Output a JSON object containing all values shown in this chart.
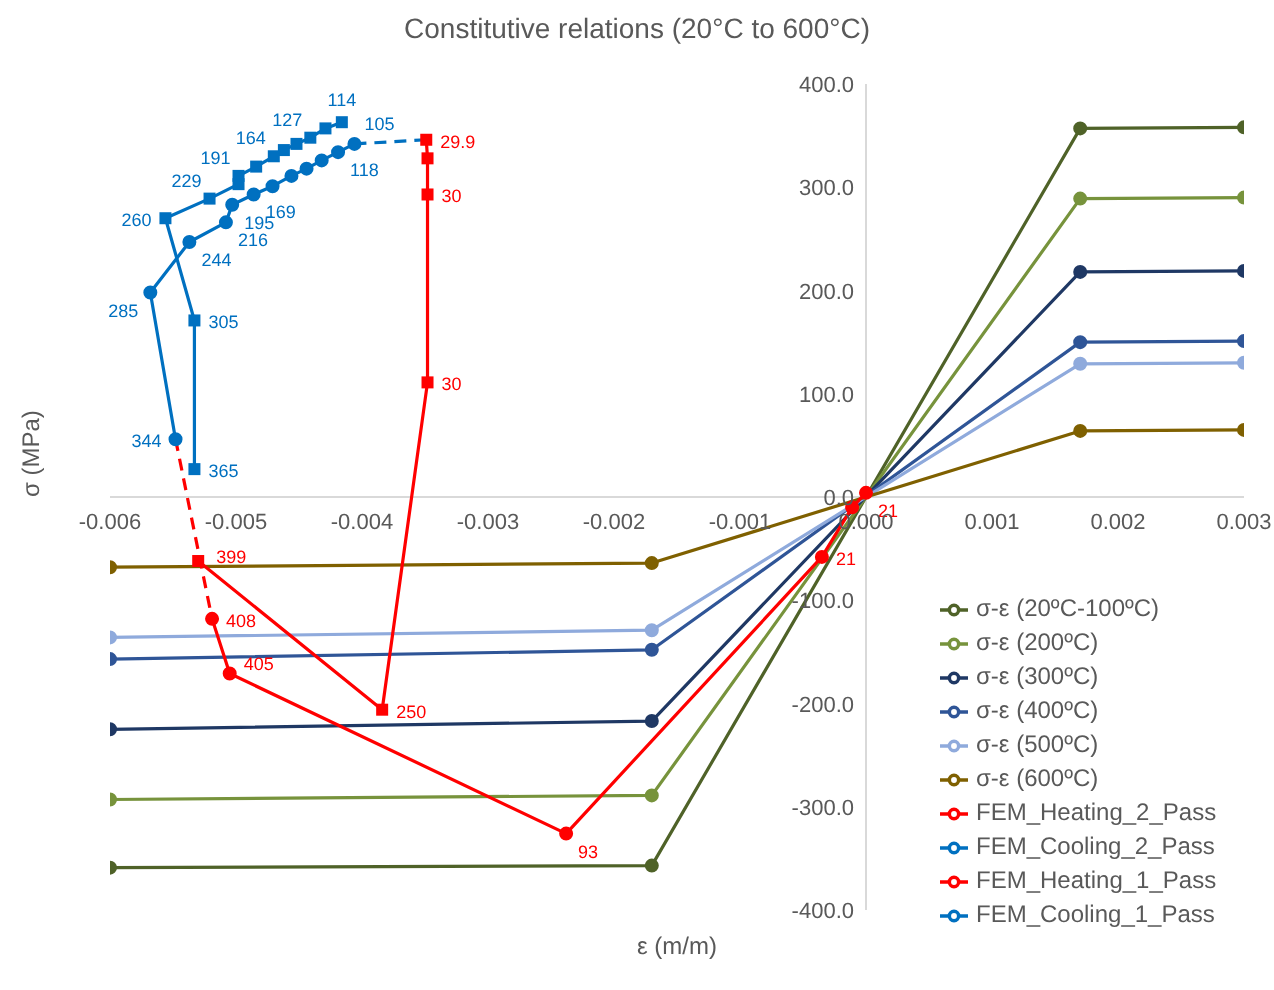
{
  "chart_data": {
    "type": "line",
    "title": "Constitutive relations (20°C to 600°C)",
    "xlabel": "ε (m/m)",
    "ylabel": "σ (MPa)",
    "xlim": [
      -0.006,
      0.003
    ],
    "xticks": [
      -0.006,
      -0.005,
      -0.004,
      -0.003,
      -0.002,
      -0.001,
      {
        "value": 0,
        "label": "0.000"
      },
      0.001,
      0.002,
      0.003
    ],
    "ylim": [
      -400,
      400
    ],
    "yticks": [
      {
        "value": -400,
        "label": "-400.0"
      },
      {
        "value": -300,
        "label": "-300.0"
      },
      {
        "value": -200,
        "label": "-200.0"
      },
      {
        "value": -100,
        "label": "-100.0"
      },
      {
        "value": 0,
        "label": "0.0"
      },
      {
        "value": 100,
        "label": "100.0"
      },
      {
        "value": 200,
        "label": "200.0"
      },
      {
        "value": 300,
        "label": "300.0"
      },
      {
        "value": 400,
        "label": "400.0"
      }
    ],
    "grid": false,
    "legend": "bottom right",
    "annotations": [
      {
        "text": "29.9",
        "x": -0.00349,
        "y": 346
      },
      {
        "text": "30",
        "x": -0.00348,
        "y": 293
      },
      {
        "text": "30",
        "x": -0.00348,
        "y": 111
      },
      {
        "text": "250",
        "x": -0.00384,
        "y": -206
      },
      {
        "text": "399",
        "x": -0.0053,
        "y": -62
      },
      {
        "text": "365",
        "x": -0.00533,
        "y": 27
      },
      {
        "text": "305",
        "x": -0.00533,
        "y": 171
      },
      {
        "text": "260",
        "x": -0.00556,
        "y": 270
      },
      {
        "text": "229",
        "x": -0.00521,
        "y": 289
      },
      {
        "text": "191",
        "x": -0.00498,
        "y": 311
      },
      {
        "text": "164",
        "x": -0.0047,
        "y": 330
      },
      {
        "text": "127",
        "x": -0.00441,
        "y": 348
      },
      {
        "text": "114",
        "x": -0.00416,
        "y": 363
      },
      {
        "text": "21",
        "x": 0.0,
        "y": 4
      },
      {
        "text": "21",
        "x": -0.00035,
        "y": -58
      },
      {
        "text": "93",
        "x": -0.00238,
        "y": -326
      },
      {
        "text": "405",
        "x": -0.00505,
        "y": -171
      },
      {
        "text": "408",
        "x": -0.00519,
        "y": -118
      },
      {
        "text": "344",
        "x": -0.00548,
        "y": 56
      },
      {
        "text": "285",
        "x": -0.00568,
        "y": 198
      },
      {
        "text": "244",
        "x": -0.00537,
        "y": 247
      },
      {
        "text": "216",
        "x": -0.00508,
        "y": 266
      },
      {
        "text": "195",
        "x": -0.00503,
        "y": 283
      },
      {
        "text": "169",
        "x": -0.00486,
        "y": 293
      },
      {
        "text": "118",
        "x": -0.00419,
        "y": 334
      },
      {
        "text": "105",
        "x": -0.00406,
        "y": 342
      }
    ],
    "series": [
      {
        "name": "σ-ε (20ºC-100ºC)",
        "color": "#4f6228",
        "marker": "circle",
        "x": [
          -0.006,
          -0.0017,
          0.0017,
          0.003
        ],
        "values": [
          -359,
          -357,
          357,
          358
        ]
      },
      {
        "name": "σ-ε (200ºC)",
        "color": "#77933c",
        "marker": "circle",
        "x": [
          -0.006,
          -0.0017,
          0.0017,
          0.003
        ],
        "values": [
          -293,
          -289,
          289,
          290
        ]
      },
      {
        "name": "σ-ε (300ºC)",
        "color": "#1f3864",
        "marker": "circle",
        "x": [
          -0.006,
          -0.0017,
          0.0017,
          0.003
        ],
        "values": [
          -225,
          -217,
          218,
          219
        ]
      },
      {
        "name": "σ-ε (400ºC)",
        "color": "#2f5597",
        "marker": "circle",
        "x": [
          -0.006,
          -0.0017,
          0.0017,
          0.003
        ],
        "values": [
          -157,
          -148,
          150,
          151
        ]
      },
      {
        "name": "σ-ε (500ºC)",
        "color": "#8faadc",
        "marker": "circle",
        "x": [
          -0.006,
          -0.0017,
          0.0017,
          0.003
        ],
        "values": [
          -136,
          -129,
          129,
          130
        ]
      },
      {
        "name": "σ-ε (600ºC)",
        "color": "#7f6000",
        "marker": "circle",
        "x": [
          -0.006,
          -0.0017,
          0.0017,
          0.003
        ],
        "values": [
          -68,
          -64,
          64,
          65
        ]
      },
      {
        "name": "FEM_Heating_2_Pass",
        "color": "#ff0000",
        "marker": "square",
        "x": [
          -0.00349,
          -0.00348,
          -0.00348,
          -0.00348,
          -0.00384,
          -0.0053
        ],
        "values": [
          346,
          328,
          293,
          111,
          -206,
          -62
        ]
      },
      {
        "name": "FEM_Cooling_2_Pass",
        "color": "#0070c0",
        "marker": "square",
        "x": [
          -0.00533,
          -0.00533,
          -0.00556,
          -0.00521,
          -0.00498,
          -0.00498,
          -0.00484,
          -0.0047,
          -0.00462,
          -0.00452,
          -0.00441,
          -0.00429,
          -0.00416
        ],
        "values": [
          27,
          171,
          270,
          289,
          303,
          311,
          320,
          330,
          336,
          342,
          348,
          357,
          363
        ]
      },
      {
        "name": "FEM_Heating_1_Pass",
        "color": "#ff0000",
        "marker": "circle",
        "x": [
          0.0,
          -0.00011,
          -0.00035,
          -0.00238,
          -0.00505,
          -0.00519
        ],
        "values": [
          4,
          -10,
          -58,
          -326,
          -171,
          -118
        ]
      },
      {
        "name": "FEM_Cooling_1_Pass",
        "color": "#0070c0",
        "marker": "circle",
        "x": [
          -0.00548,
          -0.00568,
          -0.00537,
          -0.00508,
          -0.00503,
          -0.00486,
          -0.00471,
          -0.00456,
          -0.00444,
          -0.00432,
          -0.00419,
          -0.00406
        ],
        "values": [
          56,
          198,
          247,
          266,
          283,
          293,
          301,
          311,
          318,
          326,
          334,
          342
        ]
      },
      {
        "color": "#ff0000",
        "marker": "none",
        "line_style": "dashed",
        "x": [
          -0.00548,
          -0.00519
        ],
        "values": [
          56,
          -118
        ]
      },
      {
        "color": "#0070c0",
        "marker": "none",
        "line_style": "dashed",
        "x": [
          -0.00406,
          -0.00349
        ],
        "values": [
          342,
          346
        ]
      }
    ]
  }
}
